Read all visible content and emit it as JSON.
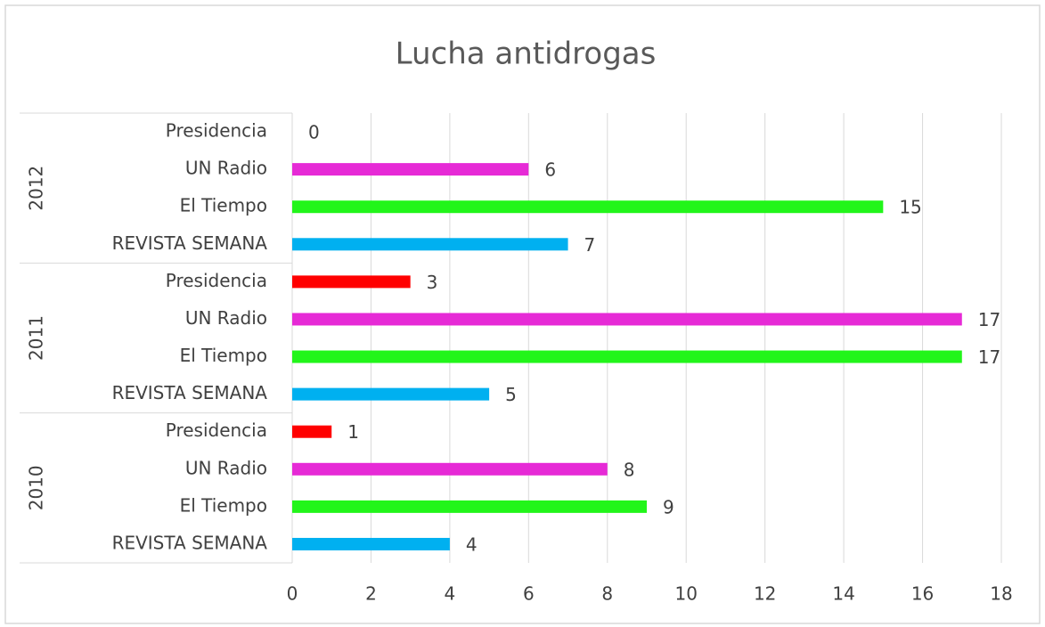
{
  "chart_data": {
    "type": "bar",
    "orientation": "horizontal",
    "title": "Lucha antidrogas",
    "groups": [
      "2012",
      "2011",
      "2010"
    ],
    "series": [
      {
        "name": "Presidencia",
        "color": "#ff0000",
        "values": [
          0,
          3,
          1
        ]
      },
      {
        "name": "UN Radio",
        "color": "#e62ad6",
        "values": [
          6,
          17,
          8
        ]
      },
      {
        "name": "El Tiempo",
        "color": "#22f51a",
        "values": [
          15,
          17,
          9
        ]
      },
      {
        "name": "REVISTA SEMANA",
        "color": "#00b0f0",
        "values": [
          7,
          5,
          4
        ]
      }
    ],
    "xlim": [
      0,
      18
    ],
    "xticks": [
      0,
      2,
      4,
      6,
      8,
      10,
      12,
      14,
      16,
      18
    ],
    "grid": true,
    "data_labels": true
  }
}
